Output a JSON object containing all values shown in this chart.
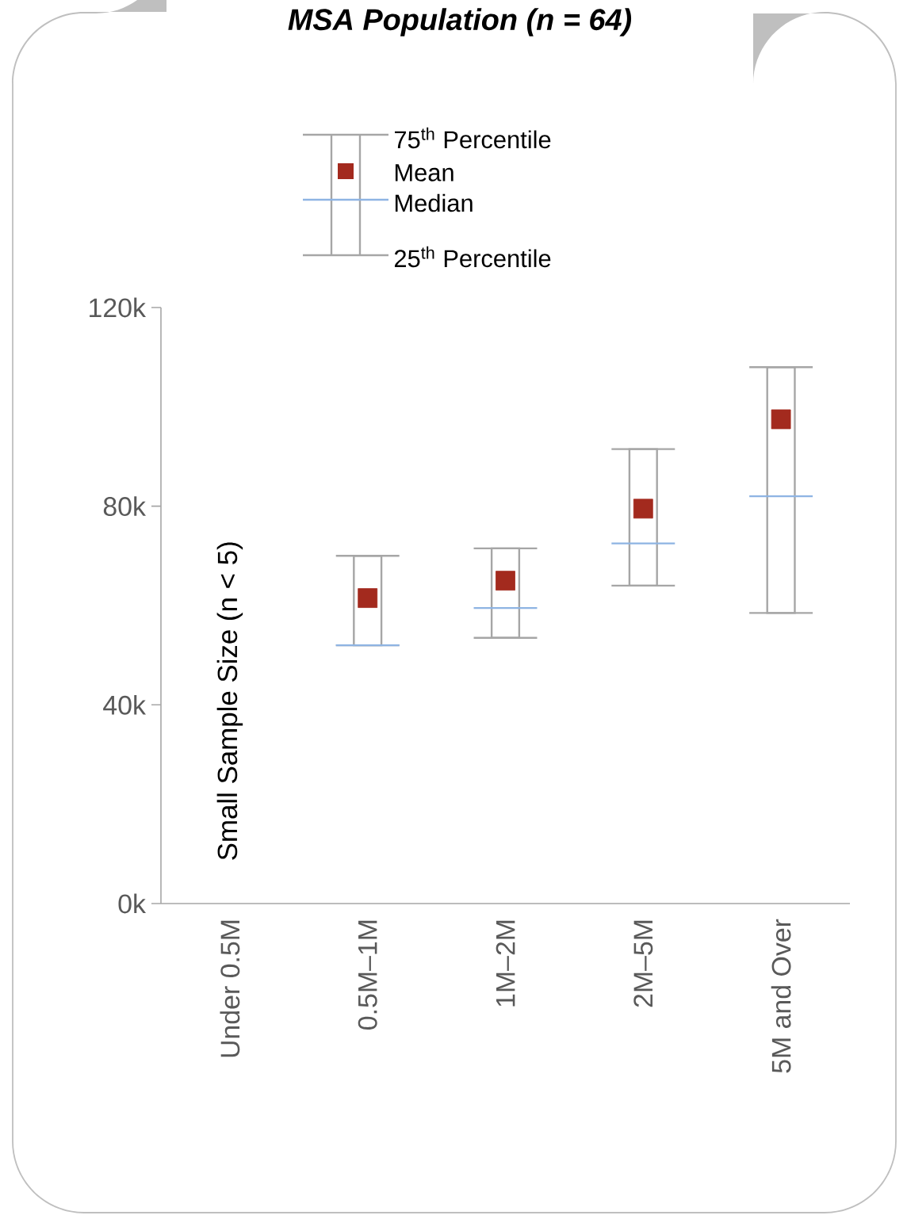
{
  "chart_data": {
    "type": "box",
    "title": "MSA Population (n = 64)",
    "categories": [
      "Under 0.5M",
      "0.5M–1M",
      "1M–2M",
      "2M–5M",
      "5M and Over"
    ],
    "boxes": [
      null,
      {
        "low": 52,
        "q1": 52,
        "median": 52,
        "q3": 70,
        "high": 70,
        "mean": 61.5
      },
      {
        "low": 53.5,
        "q1": 53.5,
        "median": 59.5,
        "q3": 71.5,
        "high": 71.5,
        "mean": 65
      },
      {
        "low": 64,
        "q1": 64,
        "median": 72.5,
        "q3": 91.5,
        "high": 91.5,
        "mean": 79.5
      },
      {
        "low": 58.5,
        "q1": 58.5,
        "median": 82,
        "q3": 108,
        "high": 108,
        "mean": 97.5
      }
    ],
    "ylim": [
      0,
      120
    ],
    "yticks": [
      {
        "value": 0,
        "label": "0k"
      },
      {
        "value": 40,
        "label": "40k"
      },
      {
        "value": 80,
        "label": "80k"
      },
      {
        "value": 120,
        "label": "120k"
      }
    ],
    "annotations": [
      "Small Sample Size (n < 5)",
      "75$^{th}$ Percentile",
      "Mean",
      "Median",
      "25$^{th}$ Percentile"
    ],
    "grid": false
  }
}
